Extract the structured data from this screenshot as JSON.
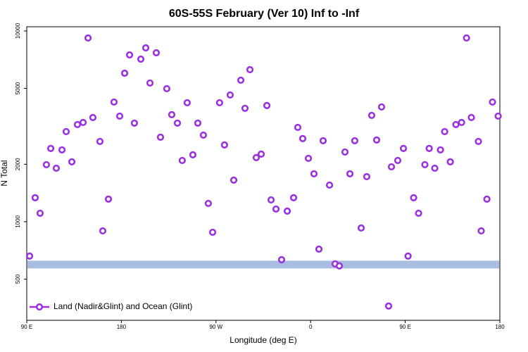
{
  "chart_data": {
    "type": "scatter",
    "title": "60S-55S February (Ver 10)   Inf to -Inf",
    "x_label": "Longitude (deg E)",
    "y_label": "N Total",
    "log_y": true,
    "legend_position": "bottom-left",
    "xlim": [
      90,
      540
    ],
    "ylim": [
      304,
      10520
    ],
    "xticks": [
      {
        "value": 90,
        "label": "90 E"
      },
      180,
      {
        "value": 270,
        "label": "90 W"
      },
      {
        "value": 360,
        "label": "0"
      },
      {
        "value": 450,
        "label": "90 E"
      },
      {
        "value": 540,
        "label": "180"
      }
    ],
    "yticks": [
      500,
      1000,
      2000,
      5000,
      10000
    ],
    "band": {
      "value": 596,
      "color": "#a8bde0"
    },
    "series": [
      {
        "name": "Land (Nadir&Glint) and Ocean (Glint)",
        "color": "#9b30e0",
        "x": [
          92.7,
          98.0,
          102.7,
          108.7,
          112.8,
          118.1,
          123.5,
          127.5,
          132.9,
          138.2,
          143.6,
          148.3,
          152.9,
          159.6,
          162.3,
          167.7,
          173.0,
          178.4,
          183.1,
          187.8,
          192.4,
          198.5,
          203.2,
          207.2,
          213.2,
          217.2,
          223.2,
          227.9,
          233.3,
          237.9,
          242.6,
          248.0,
          252.7,
          258.0,
          262.7,
          266.8,
          273.4,
          278.1,
          283.5,
          286.9,
          293.6,
          297.6,
          302.3,
          308.3,
          313.0,
          318.4,
          322.4,
          327.1,
          332.4,
          337.8,
          343.8,
          347.8,
          352.5,
          357.9,
          363.2,
          367.9,
          371.9,
          378.0,
          383.3,
          387.3,
          392.7,
          397.4,
          402.0,
          408.1,
          413.4,
          418.1,
          422.8,
          427.5,
          434.2,
          436.9,
          442.9,
          448.3,
          452.7,
          458.0,
          462.7,
          468.7,
          472.8,
          478.1,
          483.5,
          487.5,
          492.9,
          498.2,
          503.6,
          508.3,
          512.9,
          519.6,
          522.3,
          527.7,
          533.0,
          538.4
        ],
        "values": [
          660,
          1335,
          1107,
          1990,
          2420,
          1907,
          2379,
          2967,
          2060,
          3230,
          3313,
          9186,
          3517,
          2634,
          895,
          1313,
          4240,
          3577,
          6005,
          7490,
          3286,
          7117,
          8154,
          5333,
          7684,
          2773,
          4982,
          3639,
          3286,
          2094,
          4204,
          2242,
          3286,
          2843,
          1247,
          880,
          4204,
          2525,
          4616,
          1651,
          5518,
          3928,
          6266,
          2167,
          2261,
          4064,
          1301,
          1165,
          632,
          1136,
          1335,
          3122,
          2726,
          2148,
          1782,
          718,
          2657,
          1555,
          601,
          586,
          2319,
          1782,
          2657,
          927,
          1722,
          3608,
          2680,
          3995,
          361,
          1940,
          2094,
          2420,
          660,
          1335,
          1107,
          1990,
          2420,
          1907,
          2379,
          2967,
          2060,
          3230,
          3313,
          9186,
          3517,
          2634,
          895,
          1313,
          4240,
          3577
        ]
      }
    ]
  }
}
